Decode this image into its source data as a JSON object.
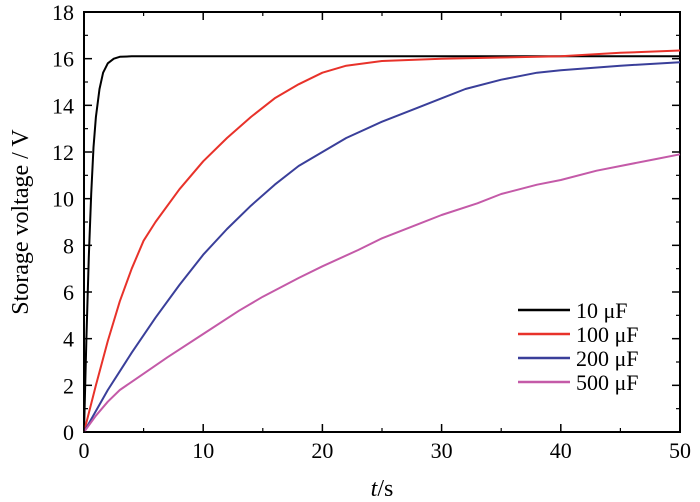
{
  "chart_data": {
    "type": "line",
    "title": "",
    "xlabel_italic": "t",
    "xlabel_unit": "/s",
    "ylabel": "Storage voltage / V",
    "xlim": [
      0,
      50
    ],
    "ylim": [
      0,
      18
    ],
    "xticks": [
      "0",
      "10",
      "20",
      "30",
      "40",
      "50"
    ],
    "yticks": [
      "0",
      "2",
      "4",
      "6",
      "8",
      "10",
      "12",
      "14",
      "16",
      "18"
    ],
    "grid": false,
    "legend_position": "bottom-right",
    "series": [
      {
        "name": "10 μF",
        "color": "#000000",
        "x": [
          0,
          0.2,
          0.4,
          0.6,
          0.8,
          1.0,
          1.3,
          1.6,
          2.0,
          2.5,
          3.0,
          4.0,
          5.0,
          10,
          20,
          30,
          40,
          50
        ],
        "y": [
          0,
          4.0,
          7.5,
          10.2,
          12.2,
          13.5,
          14.7,
          15.4,
          15.8,
          16.0,
          16.08,
          16.1,
          16.1,
          16.1,
          16.1,
          16.1,
          16.1,
          16.1
        ]
      },
      {
        "name": "100 μF",
        "color": "#e8322a",
        "x": [
          0,
          1,
          2,
          3,
          4,
          5,
          6,
          8,
          10,
          12,
          14,
          16,
          18,
          20,
          22,
          25,
          30,
          35,
          40,
          45,
          50
        ],
        "y": [
          0,
          2.0,
          3.9,
          5.6,
          7.0,
          8.2,
          9.0,
          10.4,
          11.6,
          12.6,
          13.5,
          14.3,
          14.9,
          15.4,
          15.7,
          15.9,
          16.0,
          16.05,
          16.1,
          16.25,
          16.35
        ]
      },
      {
        "name": "200 μF",
        "color": "#3a3f9a",
        "x": [
          0,
          1,
          2,
          3,
          4,
          6,
          8,
          10,
          12,
          14,
          16,
          18,
          20,
          22,
          25,
          28,
          30,
          32,
          35,
          38,
          40,
          45,
          50
        ],
        "y": [
          0,
          0.9,
          1.8,
          2.6,
          3.4,
          4.9,
          6.3,
          7.6,
          8.7,
          9.7,
          10.6,
          11.4,
          12.0,
          12.6,
          13.3,
          13.9,
          14.3,
          14.7,
          15.1,
          15.4,
          15.5,
          15.7,
          15.85
        ]
      },
      {
        "name": "500 μF",
        "color": "#c45aa8",
        "x": [
          0,
          1,
          2,
          3,
          5,
          7,
          10,
          13,
          15,
          18,
          20,
          23,
          25,
          28,
          30,
          33,
          35,
          38,
          40,
          43,
          45,
          48,
          50
        ],
        "y": [
          0,
          0.7,
          1.3,
          1.8,
          2.5,
          3.2,
          4.2,
          5.2,
          5.8,
          6.6,
          7.1,
          7.8,
          8.3,
          8.9,
          9.3,
          9.8,
          10.2,
          10.6,
          10.8,
          11.2,
          11.4,
          11.7,
          11.9
        ]
      }
    ]
  }
}
